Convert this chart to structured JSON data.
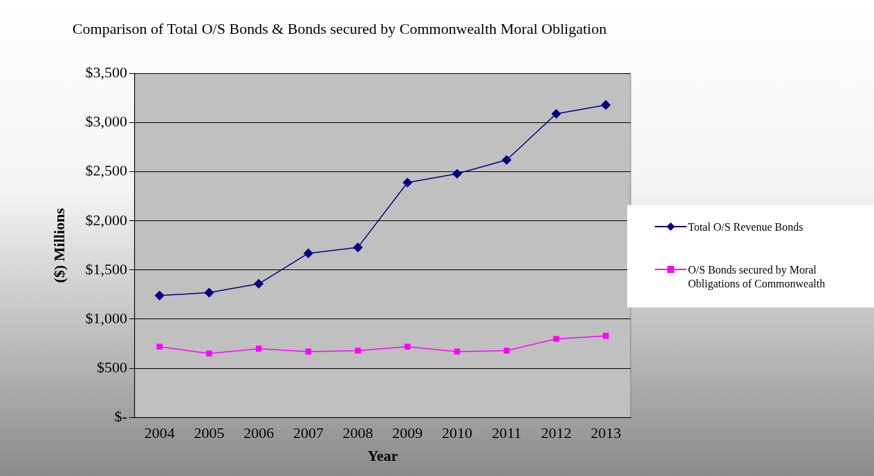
{
  "chart_data": {
    "type": "line",
    "title": "Comparison of Total O/S Bonds & Bonds secured by Commonwealth Moral Obligation",
    "xlabel": "Year",
    "ylabel": "($) Millions",
    "categories": [
      "2004",
      "2005",
      "2006",
      "2007",
      "2008",
      "2009",
      "2010",
      "2011",
      "2012",
      "2013"
    ],
    "series": [
      {
        "name": "Total O/S Revenue Bonds",
        "color": "#000080",
        "marker": "diamond",
        "values": [
          1240,
          1270,
          1360,
          1670,
          1730,
          2390,
          2480,
          2620,
          3090,
          3180
        ]
      },
      {
        "name": "O/S Bonds secured by Moral Obligations of Commonwealth",
        "color": "#ff00ff",
        "marker": "square",
        "values": [
          720,
          650,
          700,
          670,
          680,
          720,
          670,
          680,
          800,
          830
        ]
      }
    ],
    "ylim": [
      0,
      3500
    ],
    "yticks": [
      {
        "value": 0,
        "label": "$-"
      },
      {
        "value": 500,
        "label": "$500"
      },
      {
        "value": 1000,
        "label": "$1,000"
      },
      {
        "value": 1500,
        "label": "$1,500"
      },
      {
        "value": 2000,
        "label": "$2,000"
      },
      {
        "value": 2500,
        "label": "$2,500"
      },
      {
        "value": 3000,
        "label": "$3,000"
      },
      {
        "value": 3500,
        "label": "$3,500"
      }
    ],
    "grid": "y",
    "legend": "right",
    "line_style": "solid"
  }
}
